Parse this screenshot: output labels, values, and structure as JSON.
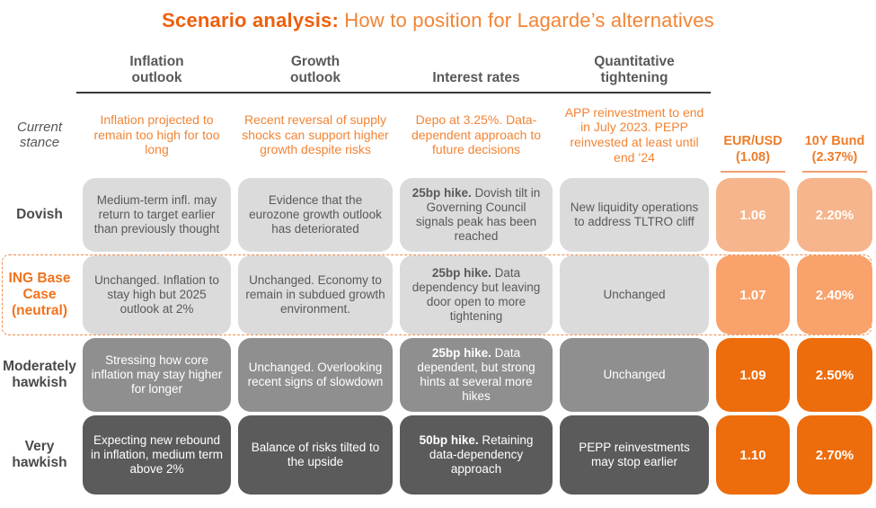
{
  "title": {
    "lead": "Scenario analysis:",
    "rest": " How to position for Lagarde’s alternatives"
  },
  "palette": {
    "accent_orange": "#ED6C0C",
    "light_orange": "#F6B58C",
    "mid_orange": "#F9A26B",
    "light_gray": "#DBDBDB",
    "mid_gray": "#8F8F8F",
    "dark_gray": "#5B5B5B",
    "title_orange": "#F28434"
  },
  "columns": {
    "inflation": "Inflation outlook",
    "growth": "Growth outlook",
    "rates": "Interest rates",
    "qt": "Quantitative tightening"
  },
  "market_columns": {
    "eurusd": {
      "label": "EUR/USD",
      "sub": "(1.08)"
    },
    "bund": {
      "label": "10Y Bund",
      "sub": "(2.37%)"
    }
  },
  "current": {
    "label": "Current stance",
    "inflation": "Inflation projected to remain too high for too long",
    "growth": "Recent reversal of supply shocks can support higher growth despite risks",
    "rates": "Depo at 3.25%. Data-dependent approach to future decisions",
    "qt": "APP reinvestment to end in July 2023. PEPP reinvested at least until end ’24"
  },
  "rows": [
    {
      "label": "Dovish",
      "inflation": "Medium-term infl. may return to target earlier than previously thought",
      "growth": "Evidence that the eurozone growth outlook has deteriorated",
      "rates": {
        "lead": "25bp hike.",
        "rest": " Dovish tilt in Governing Council signals peak has been reached"
      },
      "qt": "New liquidity operations to address TLTRO cliff",
      "eurusd": "1.06",
      "bund": "2.20%"
    },
    {
      "label": "ING Base Case (neutral)",
      "inflation": "Unchanged. Inflation to stay high but 2025 outlook at 2%",
      "growth": "Unchanged. Economy to remain in subdued growth environment.",
      "rates": {
        "lead": "25bp hike.",
        "rest": " Data dependency but leaving door open to more tightening"
      },
      "qt": "Unchanged",
      "eurusd": "1.07",
      "bund": "2.40%"
    },
    {
      "label": "Moderately hawkish",
      "inflation": "Stressing how core inflation may stay higher for longer",
      "growth": "Unchanged. Overlooking recent signs of slowdown",
      "rates": {
        "lead": "25bp hike.",
        "rest": " Data dependent, but strong hints at several more hikes"
      },
      "qt": "Unchanged",
      "eurusd": "1.09",
      "bund": "2.50%"
    },
    {
      "label": "Very hawkish",
      "inflation": "Expecting new rebound in inflation, medium term above 2%",
      "growth": "Balance of risks tilted to the upside",
      "rates": {
        "lead": "50bp hike.",
        "rest": " Retaining data-dependency approach"
      },
      "qt": "PEPP reinvestments may stop earlier",
      "eurusd": "1.10",
      "bund": "2.70%"
    }
  ]
}
